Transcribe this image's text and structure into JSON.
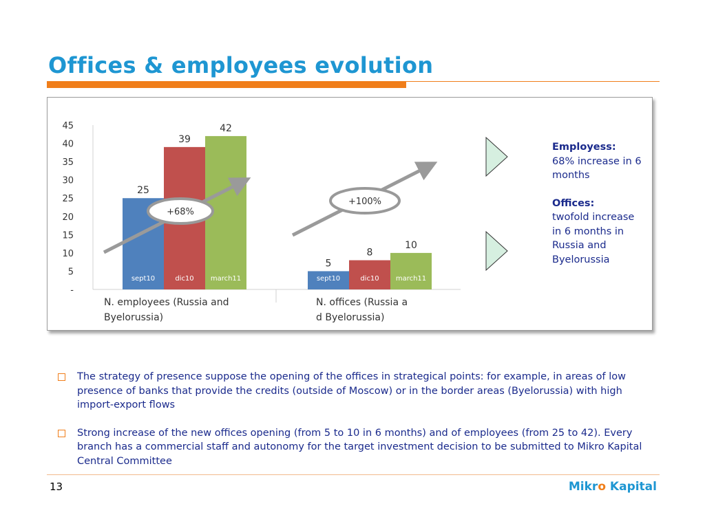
{
  "slide": {
    "title": "Offices & employees evolution",
    "page_number": "13",
    "brand": {
      "part1": "Mikr",
      "highlight": "o",
      "part2": " Kapital"
    }
  },
  "chart_data": [
    {
      "type": "bar",
      "categories": [
        "sept10",
        "dic10",
        "march11"
      ],
      "values": [
        25,
        39,
        42
      ],
      "xlabel": "N. employees (Russia and Byelorussia)",
      "ylim": [
        0,
        45
      ],
      "yticks": [
        "-",
        "5",
        "10",
        "15",
        "20",
        "25",
        "30",
        "35",
        "40",
        "45"
      ],
      "bar_colors": [
        "#4F81BD",
        "#C0504D",
        "#9BBB59"
      ],
      "annotation": "+68%"
    },
    {
      "type": "bar",
      "categories": [
        "sept10",
        "dic10",
        "march11"
      ],
      "values": [
        5,
        8,
        10
      ],
      "xlabel": "N. offices (Russia and Byelorussia)",
      "ylim": [
        0,
        45
      ],
      "bar_colors": [
        "#4F81BD",
        "#C0504D",
        "#9BBB59"
      ],
      "annotation": "+100%"
    }
  ],
  "side_notes": {
    "employees_heading": "Employess:",
    "employees_text": "68% increase in 6 months",
    "offices_heading": "Offices:",
    "offices_text": "twofold increase in 6 months in Russia and Byelorussia"
  },
  "bullets": [
    "The strategy of presence suppose the opening of the offices in strategical points: for example, in areas of low presence of banks that provide the credits (outside of Moscow) or in the border areas (Byelorussia) with high import-export flows",
    "Strong increase of the new offices opening (from 5 to 10 in 6 months) and of employees (from 25 to 42). Every branch has a commercial staff and autonomy for the target investment decision to be submitted to Mikro Kapital Central Committee"
  ],
  "colors": {
    "title": "#1E96D2",
    "accent_orange": "#F07E1A",
    "body_text": "#1A2A8C",
    "arrow_fill": "#D6EFE0"
  }
}
